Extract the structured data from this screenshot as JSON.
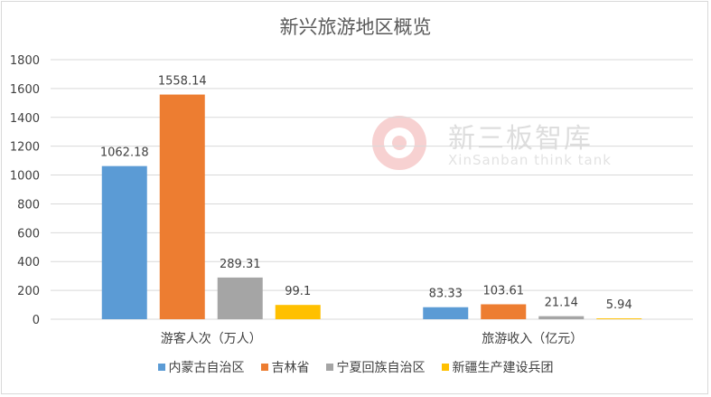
{
  "chart_data": {
    "type": "bar",
    "title": "新兴旅游地区概览",
    "categories": [
      "游客人次（万人）",
      "旅游收入（亿元）"
    ],
    "series": [
      {
        "name": "内蒙古自治区",
        "color": "#5B9BD5",
        "values": [
          1062.18,
          83.33
        ],
        "labels": [
          "1062.18",
          "83.33"
        ]
      },
      {
        "name": "吉林省",
        "color": "#ED7D31",
        "values": [
          1558.14,
          103.61
        ],
        "labels": [
          "1558.14",
          "103.61"
        ]
      },
      {
        "name": "宁夏回族自治区",
        "color": "#A5A5A5",
        "values": [
          289.31,
          21.14
        ],
        "labels": [
          "289.31",
          "21.14"
        ]
      },
      {
        "name": "新疆生产建设兵团",
        "color": "#FFC000",
        "values": [
          99.1,
          5.94
        ],
        "labels": [
          "99.1",
          "5.94"
        ]
      }
    ],
    "ylim": [
      0,
      1800
    ],
    "yticks": [
      0,
      200,
      400,
      600,
      800,
      1000,
      1200,
      1400,
      1600,
      1800
    ],
    "grid": true,
    "legend_position": "bottom"
  },
  "watermark": {
    "name_cn": "新三板智库",
    "name_en": "XinSanban think tank"
  }
}
